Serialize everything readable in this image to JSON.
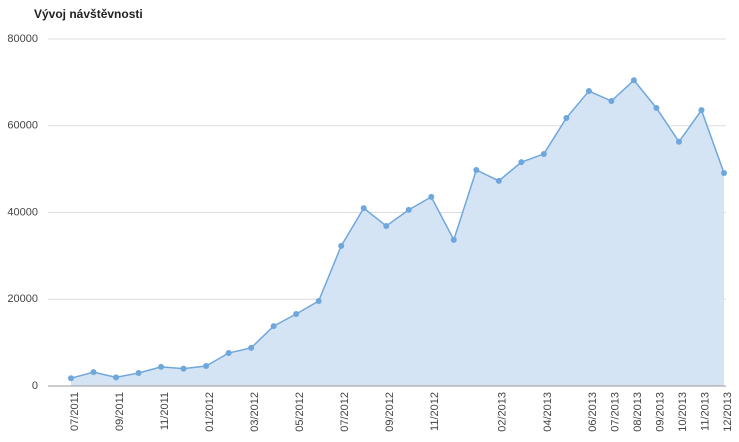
{
  "chart_data": {
    "type": "area",
    "title": "Vývoj návštěvnosti",
    "categories": [
      "07/2011",
      null,
      "09/2011",
      null,
      "11/2011",
      null,
      "01/2012",
      null,
      "03/2012",
      null,
      "05/2012",
      null,
      "07/2012",
      null,
      "09/2012",
      null,
      "11/2012",
      null,
      null,
      "02/2013",
      null,
      "04/2013",
      null,
      "06/2013",
      "07/2013",
      "08/2013",
      "09/2013",
      "10/2013",
      "11/2013",
      "12/2013"
    ],
    "values": [
      1800,
      3200,
      2000,
      3000,
      4400,
      4000,
      4600,
      7600,
      8800,
      13800,
      16600,
      19600,
      32300,
      41000,
      36900,
      40600,
      43600,
      33700,
      49800,
      47300,
      51600,
      53500,
      61800,
      68000,
      65700,
      70500,
      64100,
      56300,
      63600,
      49100
    ],
    "color": "#6fa7dc",
    "fill": "#d5e4f5",
    "ylim": [
      0,
      80000
    ],
    "yticks": [
      0,
      20000,
      40000,
      60000,
      80000
    ],
    "grid": true
  }
}
